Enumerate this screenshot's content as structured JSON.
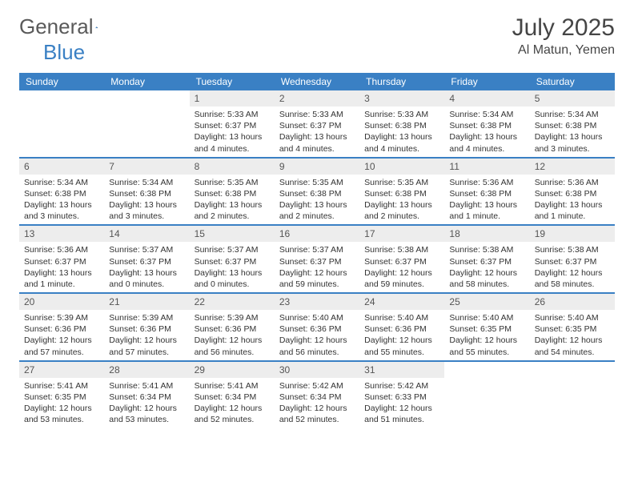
{
  "brand": {
    "part1": "General",
    "part2": "Blue",
    "text_color": "#5a5a5a",
    "accent_color": "#3a80c4"
  },
  "title": "July 2025",
  "location": "Al Matun, Yemen",
  "header_bg": "#3a80c4",
  "header_text": "#ffffff",
  "daynum_bg": "#ededed",
  "divider_color": "#3a80c4",
  "days_of_week": [
    "Sunday",
    "Monday",
    "Tuesday",
    "Wednesday",
    "Thursday",
    "Friday",
    "Saturday"
  ],
  "weeks": [
    [
      {
        "empty": true
      },
      {
        "empty": true
      },
      {
        "num": "1",
        "sunrise": "Sunrise: 5:33 AM",
        "sunset": "Sunset: 6:37 PM",
        "daylight": "Daylight: 13 hours and 4 minutes."
      },
      {
        "num": "2",
        "sunrise": "Sunrise: 5:33 AM",
        "sunset": "Sunset: 6:37 PM",
        "daylight": "Daylight: 13 hours and 4 minutes."
      },
      {
        "num": "3",
        "sunrise": "Sunrise: 5:33 AM",
        "sunset": "Sunset: 6:38 PM",
        "daylight": "Daylight: 13 hours and 4 minutes."
      },
      {
        "num": "4",
        "sunrise": "Sunrise: 5:34 AM",
        "sunset": "Sunset: 6:38 PM",
        "daylight": "Daylight: 13 hours and 4 minutes."
      },
      {
        "num": "5",
        "sunrise": "Sunrise: 5:34 AM",
        "sunset": "Sunset: 6:38 PM",
        "daylight": "Daylight: 13 hours and 3 minutes."
      }
    ],
    [
      {
        "num": "6",
        "sunrise": "Sunrise: 5:34 AM",
        "sunset": "Sunset: 6:38 PM",
        "daylight": "Daylight: 13 hours and 3 minutes."
      },
      {
        "num": "7",
        "sunrise": "Sunrise: 5:34 AM",
        "sunset": "Sunset: 6:38 PM",
        "daylight": "Daylight: 13 hours and 3 minutes."
      },
      {
        "num": "8",
        "sunrise": "Sunrise: 5:35 AM",
        "sunset": "Sunset: 6:38 PM",
        "daylight": "Daylight: 13 hours and 2 minutes."
      },
      {
        "num": "9",
        "sunrise": "Sunrise: 5:35 AM",
        "sunset": "Sunset: 6:38 PM",
        "daylight": "Daylight: 13 hours and 2 minutes."
      },
      {
        "num": "10",
        "sunrise": "Sunrise: 5:35 AM",
        "sunset": "Sunset: 6:38 PM",
        "daylight": "Daylight: 13 hours and 2 minutes."
      },
      {
        "num": "11",
        "sunrise": "Sunrise: 5:36 AM",
        "sunset": "Sunset: 6:38 PM",
        "daylight": "Daylight: 13 hours and 1 minute."
      },
      {
        "num": "12",
        "sunrise": "Sunrise: 5:36 AM",
        "sunset": "Sunset: 6:38 PM",
        "daylight": "Daylight: 13 hours and 1 minute."
      }
    ],
    [
      {
        "num": "13",
        "sunrise": "Sunrise: 5:36 AM",
        "sunset": "Sunset: 6:37 PM",
        "daylight": "Daylight: 13 hours and 1 minute."
      },
      {
        "num": "14",
        "sunrise": "Sunrise: 5:37 AM",
        "sunset": "Sunset: 6:37 PM",
        "daylight": "Daylight: 13 hours and 0 minutes."
      },
      {
        "num": "15",
        "sunrise": "Sunrise: 5:37 AM",
        "sunset": "Sunset: 6:37 PM",
        "daylight": "Daylight: 13 hours and 0 minutes."
      },
      {
        "num": "16",
        "sunrise": "Sunrise: 5:37 AM",
        "sunset": "Sunset: 6:37 PM",
        "daylight": "Daylight: 12 hours and 59 minutes."
      },
      {
        "num": "17",
        "sunrise": "Sunrise: 5:38 AM",
        "sunset": "Sunset: 6:37 PM",
        "daylight": "Daylight: 12 hours and 59 minutes."
      },
      {
        "num": "18",
        "sunrise": "Sunrise: 5:38 AM",
        "sunset": "Sunset: 6:37 PM",
        "daylight": "Daylight: 12 hours and 58 minutes."
      },
      {
        "num": "19",
        "sunrise": "Sunrise: 5:38 AM",
        "sunset": "Sunset: 6:37 PM",
        "daylight": "Daylight: 12 hours and 58 minutes."
      }
    ],
    [
      {
        "num": "20",
        "sunrise": "Sunrise: 5:39 AM",
        "sunset": "Sunset: 6:36 PM",
        "daylight": "Daylight: 12 hours and 57 minutes."
      },
      {
        "num": "21",
        "sunrise": "Sunrise: 5:39 AM",
        "sunset": "Sunset: 6:36 PM",
        "daylight": "Daylight: 12 hours and 57 minutes."
      },
      {
        "num": "22",
        "sunrise": "Sunrise: 5:39 AM",
        "sunset": "Sunset: 6:36 PM",
        "daylight": "Daylight: 12 hours and 56 minutes."
      },
      {
        "num": "23",
        "sunrise": "Sunrise: 5:40 AM",
        "sunset": "Sunset: 6:36 PM",
        "daylight": "Daylight: 12 hours and 56 minutes."
      },
      {
        "num": "24",
        "sunrise": "Sunrise: 5:40 AM",
        "sunset": "Sunset: 6:36 PM",
        "daylight": "Daylight: 12 hours and 55 minutes."
      },
      {
        "num": "25",
        "sunrise": "Sunrise: 5:40 AM",
        "sunset": "Sunset: 6:35 PM",
        "daylight": "Daylight: 12 hours and 55 minutes."
      },
      {
        "num": "26",
        "sunrise": "Sunrise: 5:40 AM",
        "sunset": "Sunset: 6:35 PM",
        "daylight": "Daylight: 12 hours and 54 minutes."
      }
    ],
    [
      {
        "num": "27",
        "sunrise": "Sunrise: 5:41 AM",
        "sunset": "Sunset: 6:35 PM",
        "daylight": "Daylight: 12 hours and 53 minutes."
      },
      {
        "num": "28",
        "sunrise": "Sunrise: 5:41 AM",
        "sunset": "Sunset: 6:34 PM",
        "daylight": "Daylight: 12 hours and 53 minutes."
      },
      {
        "num": "29",
        "sunrise": "Sunrise: 5:41 AM",
        "sunset": "Sunset: 6:34 PM",
        "daylight": "Daylight: 12 hours and 52 minutes."
      },
      {
        "num": "30",
        "sunrise": "Sunrise: 5:42 AM",
        "sunset": "Sunset: 6:34 PM",
        "daylight": "Daylight: 12 hours and 52 minutes."
      },
      {
        "num": "31",
        "sunrise": "Sunrise: 5:42 AM",
        "sunset": "Sunset: 6:33 PM",
        "daylight": "Daylight: 12 hours and 51 minutes."
      },
      {
        "empty": true
      },
      {
        "empty": true
      }
    ]
  ]
}
